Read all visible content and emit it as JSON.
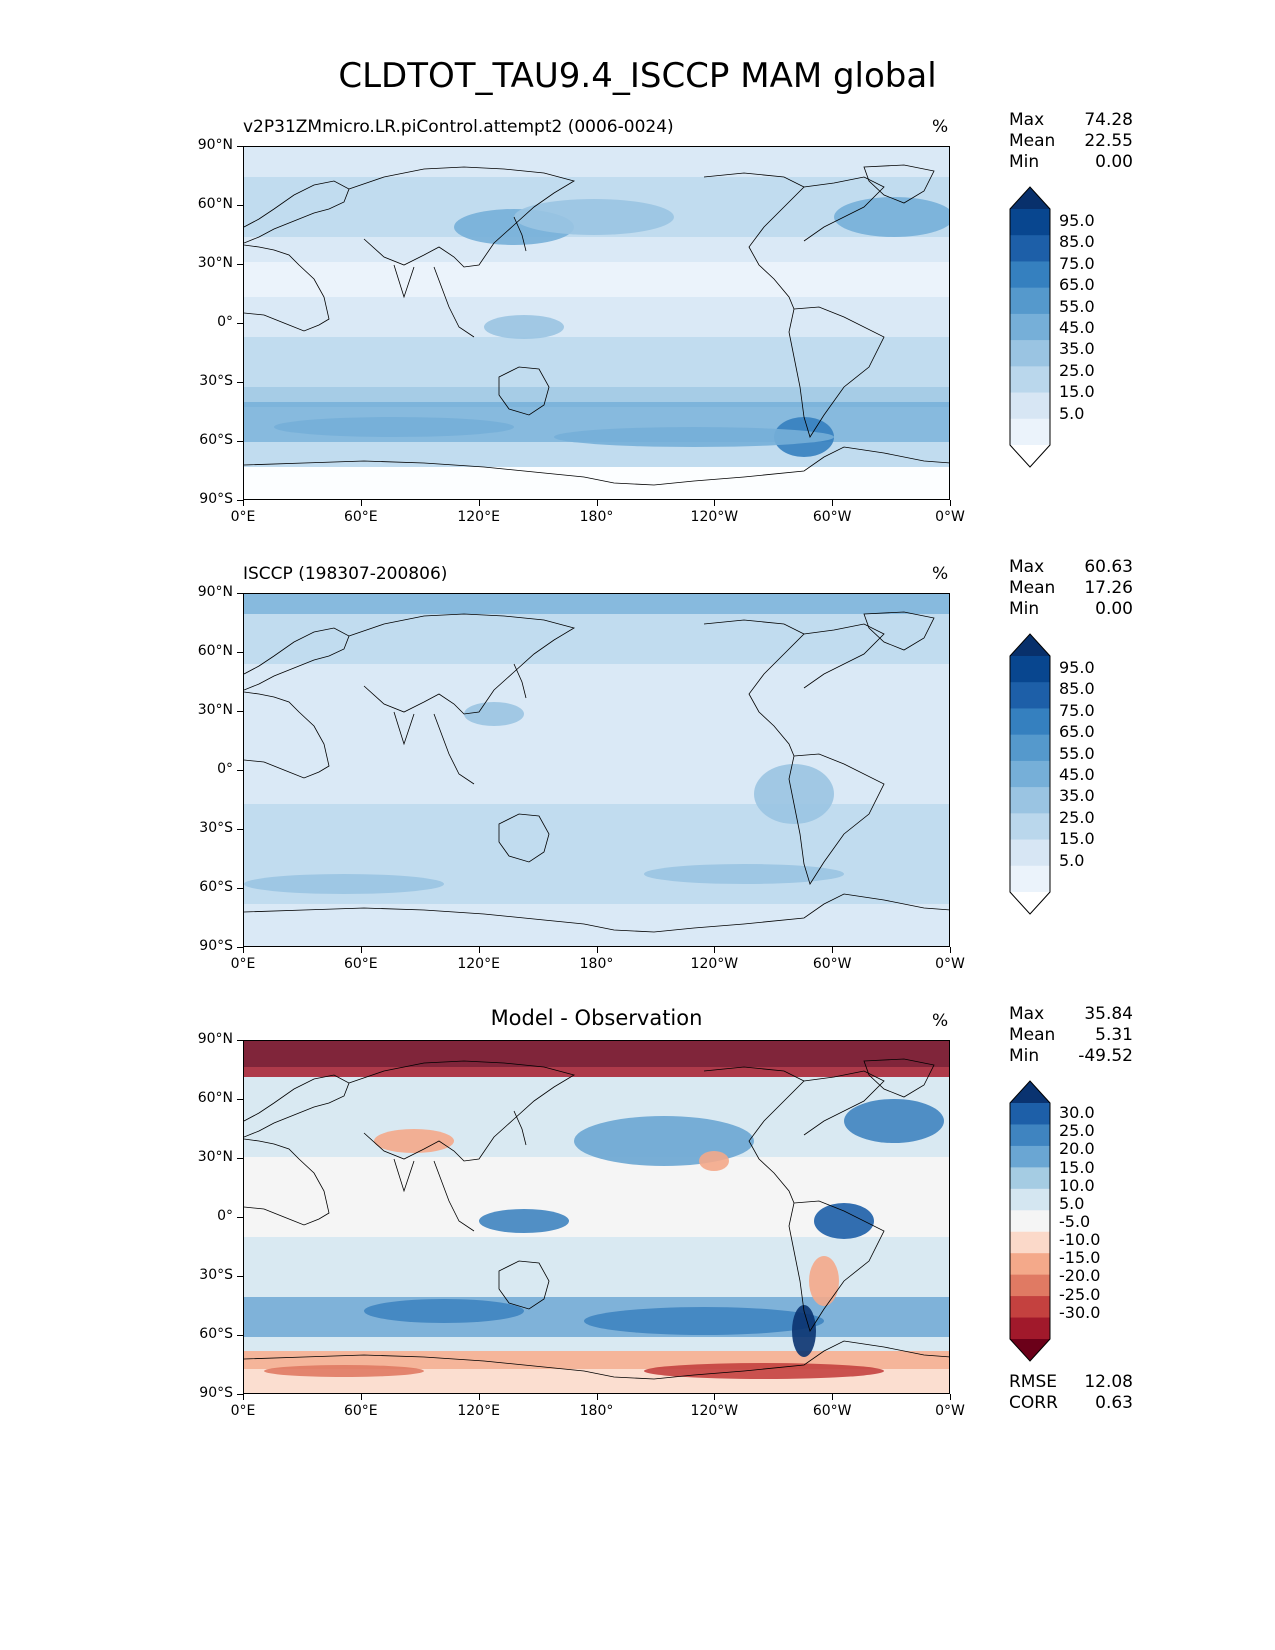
{
  "title": "CLDTOT_TAU9.4_ISCCP MAM global",
  "lat_ticks": [
    "90°N",
    "60°N",
    "30°N",
    "0°",
    "30°S",
    "60°S",
    "90°S"
  ],
  "lon_ticks": [
    "0°E",
    "60°E",
    "120°E",
    "180°",
    "120°W",
    "60°W",
    "0°W"
  ],
  "panels": [
    {
      "title_left": "v2P31ZMmicro.LR.piControl.attempt2 (0006-0024)",
      "title_center": "",
      "units": "%",
      "stats": [
        {
          "label": "Max",
          "value": "74.28"
        },
        {
          "label": "Mean",
          "value": "22.55"
        },
        {
          "label": "Min",
          "value": "0.00"
        }
      ],
      "colorbar": {
        "labels": [
          "95.0",
          "85.0",
          "75.0",
          "65.0",
          "55.0",
          "45.0",
          "35.0",
          "25.0",
          "15.0",
          "5.0"
        ],
        "colors": [
          "#08306b",
          "#08468f",
          "#1d5fa8",
          "#3580bf",
          "#5599cc",
          "#76afd8",
          "#9ac4e2",
          "#bad7ec",
          "#d7e6f4",
          "#ebf3fb",
          "#ffffff"
        ]
      }
    },
    {
      "title_left": "ISCCP (198307-200806)",
      "title_center": "",
      "units": "%",
      "stats": [
        {
          "label": "Max",
          "value": "60.63"
        },
        {
          "label": "Mean",
          "value": "17.26"
        },
        {
          "label": "Min",
          "value": "0.00"
        }
      ],
      "colorbar": {
        "labels": [
          "95.0",
          "85.0",
          "75.0",
          "65.0",
          "55.0",
          "45.0",
          "35.0",
          "25.0",
          "15.0",
          "5.0"
        ],
        "colors": [
          "#08306b",
          "#08468f",
          "#1d5fa8",
          "#3580bf",
          "#5599cc",
          "#76afd8",
          "#9ac4e2",
          "#bad7ec",
          "#d7e6f4",
          "#ebf3fb",
          "#ffffff"
        ]
      }
    },
    {
      "title_left": "",
      "title_center": "Model - Observation",
      "units": "%",
      "stats": [
        {
          "label": "Max",
          "value": "35.84"
        },
        {
          "label": "Mean",
          "value": "5.31"
        },
        {
          "label": "Min",
          "value": "-49.52"
        }
      ],
      "stats_bottom": [
        {
          "label": "RMSE",
          "value": "12.08"
        },
        {
          "label": "CORR",
          "value": "0.63"
        }
      ],
      "colorbar": {
        "labels": [
          "30.0",
          "25.0",
          "20.0",
          "15.0",
          "10.0",
          "5.0",
          "-5.0",
          "-10.0",
          "-15.0",
          "-20.0",
          "-25.0",
          "-30.0"
        ],
        "colors": [
          "#0a3370",
          "#1d5fa8",
          "#3f84c0",
          "#6aa6d3",
          "#a5cce3",
          "#d4e6f1",
          "#f5f5f5",
          "#fbd9c9",
          "#f4a98a",
          "#e07a63",
          "#c4413f",
          "#a1192b",
          "#6b0019"
        ]
      }
    }
  ]
}
